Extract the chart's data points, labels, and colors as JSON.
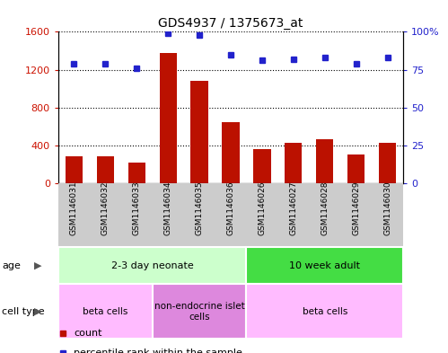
{
  "title": "GDS4937 / 1375673_at",
  "samples": [
    "GSM1146031",
    "GSM1146032",
    "GSM1146033",
    "GSM1146034",
    "GSM1146035",
    "GSM1146036",
    "GSM1146026",
    "GSM1146027",
    "GSM1146028",
    "GSM1146029",
    "GSM1146030"
  ],
  "counts": [
    290,
    285,
    220,
    1380,
    1080,
    650,
    360,
    430,
    470,
    310,
    430
  ],
  "percentiles": [
    79,
    79,
    76,
    99,
    98,
    85,
    81,
    82,
    83,
    79,
    83
  ],
  "ylim_left": [
    0,
    1600
  ],
  "ylim_right": [
    0,
    100
  ],
  "yticks_left": [
    0,
    400,
    800,
    1200,
    1600
  ],
  "ytick_labels_left": [
    "0",
    "400",
    "800",
    "1200",
    "1600"
  ],
  "yticks_right": [
    0,
    25,
    50,
    75,
    100
  ],
  "ytick_labels_right": [
    "0",
    "25",
    "50",
    "75",
    "100%"
  ],
  "bar_color": "#bb1100",
  "dot_color": "#2222cc",
  "age_groups": [
    {
      "label": "2-3 day neonate",
      "start": 0,
      "end": 6,
      "color": "#ccffcc"
    },
    {
      "label": "10 week adult",
      "start": 6,
      "end": 11,
      "color": "#44dd44"
    }
  ],
  "cell_type_groups": [
    {
      "label": "beta cells",
      "start": 0,
      "end": 3,
      "color": "#ffbbff"
    },
    {
      "label": "non-endocrine islet\ncells",
      "start": 3,
      "end": 6,
      "color": "#dd88dd"
    },
    {
      "label": "beta cells",
      "start": 6,
      "end": 11,
      "color": "#ffbbff"
    }
  ],
  "legend_items": [
    {
      "label": "count",
      "color": "#bb1100"
    },
    {
      "label": "percentile rank within the sample",
      "color": "#2222cc"
    }
  ],
  "tick_label_color_left": "#cc1100",
  "tick_label_color_right": "#2222cc",
  "xtick_bg": "#cccccc",
  "plot_bg": "#ffffff"
}
